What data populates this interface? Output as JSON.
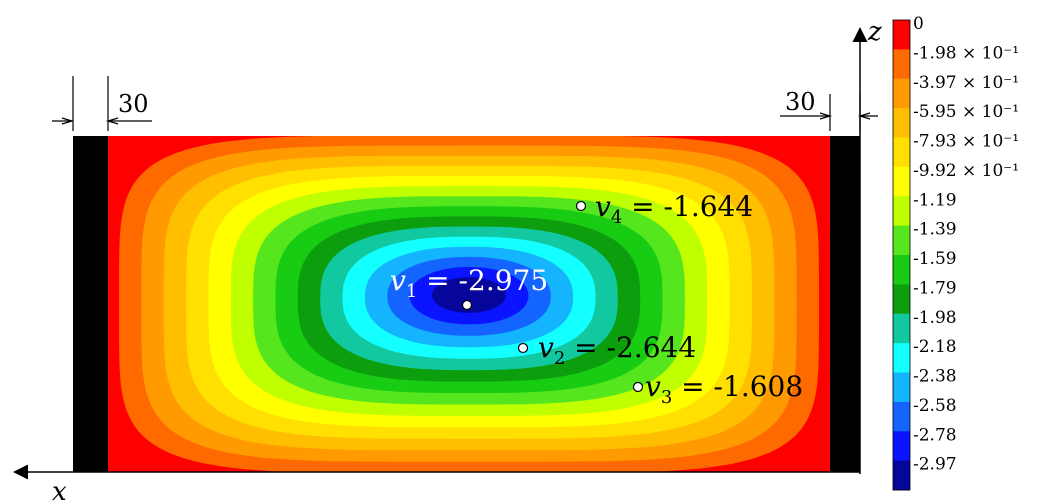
{
  "chart_data": {
    "type": "heatmap",
    "title": "",
    "axes": {
      "horizontal_label": "x",
      "vertical_label": "z"
    },
    "dimensions": {
      "left_value": "30",
      "right_value": "30"
    },
    "colorbar": {
      "levels": [
        {
          "label": "0",
          "value": 0,
          "color": "#ff0000"
        },
        {
          "label": "-1.98 × 10⁻¹",
          "value": -0.198,
          "color": "#ff6a00"
        },
        {
          "label": "-3.97 × 10⁻¹",
          "value": -0.397,
          "color": "#ff9a00"
        },
        {
          "label": "-5.95 × 10⁻¹",
          "value": -0.595,
          "color": "#ffbe00"
        },
        {
          "label": "-7.93 × 10⁻¹",
          "value": -0.793,
          "color": "#ffe000"
        },
        {
          "label": "-9.92 × 10⁻¹",
          "value": -0.992,
          "color": "#ffff00"
        },
        {
          "label": "-1.19",
          "value": -1.19,
          "color": "#bfff00"
        },
        {
          "label": "-1.39",
          "value": -1.39,
          "color": "#56e61e"
        },
        {
          "label": "-1.59",
          "value": -1.59,
          "color": "#17cc12"
        },
        {
          "label": "-1.79",
          "value": -1.79,
          "color": "#0d9e0d"
        },
        {
          "label": "-1.98",
          "value": -1.98,
          "color": "#11c8a0"
        },
        {
          "label": "-2.18",
          "value": -2.18,
          "color": "#14ffff"
        },
        {
          "label": "-2.38",
          "value": -2.38,
          "color": "#14b4ff"
        },
        {
          "label": "-2.58",
          "value": -2.58,
          "color": "#1465ff"
        },
        {
          "label": "-2.78",
          "value": -2.78,
          "color": "#0b14ff"
        },
        {
          "label": "-2.97",
          "value": -2.97,
          "color": "#06069d"
        }
      ]
    },
    "annotations": [
      {
        "symbol": "v",
        "sub": "1",
        "value": "-2.975"
      },
      {
        "symbol": "v",
        "sub": "2",
        "value": "-2.644"
      },
      {
        "symbol": "v",
        "sub": "3",
        "value": "-1.608"
      },
      {
        "symbol": "v",
        "sub": "4",
        "value": "-1.644"
      }
    ]
  }
}
